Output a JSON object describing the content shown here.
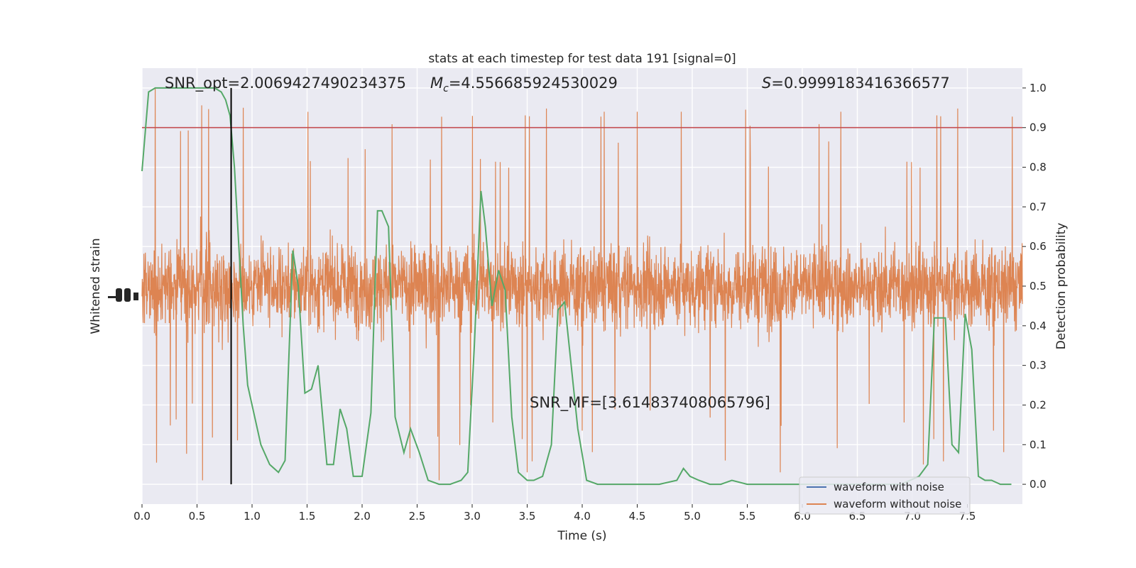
{
  "chart_data": {
    "type": "line",
    "title": "stats at each timestep for test data 191 [signal=0]",
    "xlabel": "Time (s)",
    "ylabel_left": "Whitened strain",
    "ylabel_right": "Detection probability",
    "xlim": [
      0,
      8
    ],
    "ylim_right": [
      -0.05,
      1.05
    ],
    "x_ticks": [
      "0.0",
      "0.5",
      "1.0",
      "1.5",
      "2.0",
      "2.5",
      "3.0",
      "3.5",
      "4.0",
      "4.5",
      "5.0",
      "5.5",
      "6.0",
      "6.5",
      "7.0",
      "7.5"
    ],
    "y_ticks_right": [
      "0.0",
      "0.1",
      "0.2",
      "0.3",
      "0.4",
      "0.5",
      "0.6",
      "0.7",
      "0.8",
      "0.9",
      "1.0"
    ],
    "grid": true,
    "legend_position": "lower-right",
    "annotations": {
      "snr_opt": "SNR_opt=2.0069427490234375",
      "mc_symbol": "M",
      "mc_sub": "c",
      "mc_value": "=4.556685924530029",
      "s_symbol": "S",
      "s_value": "=0.9999183416366577",
      "snr_mf": "SNR_MF=[3.614837408065796]"
    },
    "threshold": {
      "value": 0.9,
      "color": "#c44e52"
    },
    "marker_time": 0.81,
    "series": [
      {
        "name": "waveform with noise",
        "color": "#4c72b0",
        "kind": "strain"
      },
      {
        "name": "waveform without noise",
        "color": "#dd8452",
        "kind": "strain",
        "band_center": 0.5,
        "band_halfwidth": 0.2,
        "seed": 191,
        "spikes": [
          [
            0.12,
            1.0
          ],
          [
            0.92,
            0.95
          ],
          [
            4.2,
            0.94
          ],
          [
            4.5,
            0.94
          ],
          [
            4.9,
            0.94
          ],
          [
            5.3,
            0.98
          ],
          [
            6.35,
            0.94
          ],
          [
            7.1,
            0.95
          ],
          [
            0.55,
            0.01
          ],
          [
            2.7,
            0.01
          ],
          [
            3.5,
            0.03
          ],
          [
            5.8,
            0.03
          ],
          [
            7.1,
            0.05
          ],
          [
            5.3,
            0.06
          ]
        ]
      },
      {
        "name": "",
        "color": "#55a868",
        "kind": "probability",
        "x": [
          0,
          0.06,
          0.12,
          0.3,
          0.5,
          0.6,
          0.66,
          0.72,
          0.76,
          0.8,
          0.84,
          0.88,
          0.92,
          0.96,
          1.0,
          1.08,
          1.16,
          1.24,
          1.3,
          1.37,
          1.42,
          1.48,
          1.54,
          1.6,
          1.68,
          1.74,
          1.8,
          1.86,
          1.92,
          2.0,
          2.08,
          2.14,
          2.18,
          2.24,
          2.3,
          2.38,
          2.44,
          2.52,
          2.6,
          2.7,
          2.8,
          2.9,
          2.96,
          3.02,
          3.08,
          3.12,
          3.18,
          3.24,
          3.3,
          3.36,
          3.42,
          3.5,
          3.56,
          3.64,
          3.72,
          3.78,
          3.84,
          3.9,
          3.96,
          4.04,
          4.14,
          4.3,
          4.5,
          4.7,
          4.86,
          4.92,
          4.98,
          5.06,
          5.16,
          5.26,
          5.36,
          5.5,
          5.7,
          5.9,
          6.1,
          6.3,
          6.5,
          6.7,
          6.9,
          7.06,
          7.14,
          7.2,
          7.26,
          7.3,
          7.36,
          7.42,
          7.48,
          7.54,
          7.6,
          7.66,
          7.72,
          7.8,
          7.9
        ],
        "y": [
          0.79,
          0.99,
          1.0,
          1.0,
          1.0,
          1.0,
          1.0,
          0.99,
          0.97,
          0.93,
          0.8,
          0.6,
          0.4,
          0.25,
          0.2,
          0.1,
          0.05,
          0.03,
          0.06,
          0.59,
          0.5,
          0.23,
          0.24,
          0.3,
          0.05,
          0.05,
          0.19,
          0.14,
          0.02,
          0.02,
          0.18,
          0.69,
          0.69,
          0.65,
          0.17,
          0.08,
          0.14,
          0.08,
          0.01,
          0.0,
          0.0,
          0.01,
          0.03,
          0.35,
          0.74,
          0.65,
          0.45,
          0.54,
          0.49,
          0.17,
          0.03,
          0.01,
          0.01,
          0.02,
          0.1,
          0.44,
          0.46,
          0.3,
          0.14,
          0.01,
          0.0,
          0.0,
          0.0,
          0.0,
          0.01,
          0.04,
          0.02,
          0.01,
          0.0,
          0.0,
          0.01,
          0.0,
          0.0,
          0.0,
          0.0,
          0.0,
          0.0,
          0.0,
          0.0,
          0.02,
          0.05,
          0.42,
          0.42,
          0.42,
          0.1,
          0.08,
          0.43,
          0.34,
          0.02,
          0.01,
          0.01,
          0.0,
          0.0
        ]
      }
    ]
  }
}
